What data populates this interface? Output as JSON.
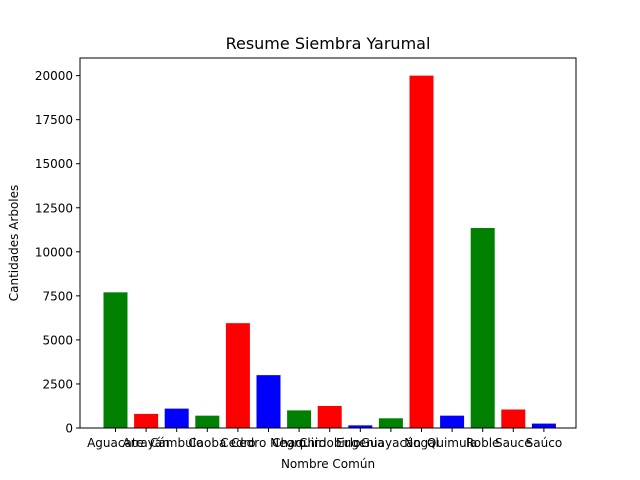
{
  "chart_data": {
    "type": "bar",
    "title": "Resume Siembra Yarumal",
    "xlabel": "Nombre Común",
    "ylabel": "Cantidades Arboles",
    "categories": [
      "Aguacate",
      "Arrayán",
      "Cámbulo",
      "Caoba",
      "Cedro",
      "Cedro Negro",
      "Chaquiro",
      "Chirlobirlo",
      "Eugenia",
      "Guayacán",
      "Nogal",
      "Quimula",
      "Roble",
      "Sauce",
      "Saúco"
    ],
    "values": [
      7700,
      800,
      1100,
      700,
      5950,
      3000,
      1000,
      1250,
      150,
      550,
      20000,
      700,
      11350,
      1050,
      250
    ],
    "colors": [
      "#008000",
      "#ff0000",
      "#0000ff",
      "#008000",
      "#ff0000",
      "#0000ff",
      "#008000",
      "#ff0000",
      "#0000ff",
      "#008000",
      "#ff0000",
      "#0000ff",
      "#008000",
      "#ff0000",
      "#0000ff"
    ],
    "ylim": [
      0,
      21000
    ],
    "yticks": [
      0,
      2500,
      5000,
      7500,
      10000,
      12500,
      15000,
      17500,
      20000
    ],
    "grid": false,
    "legend": "none"
  }
}
